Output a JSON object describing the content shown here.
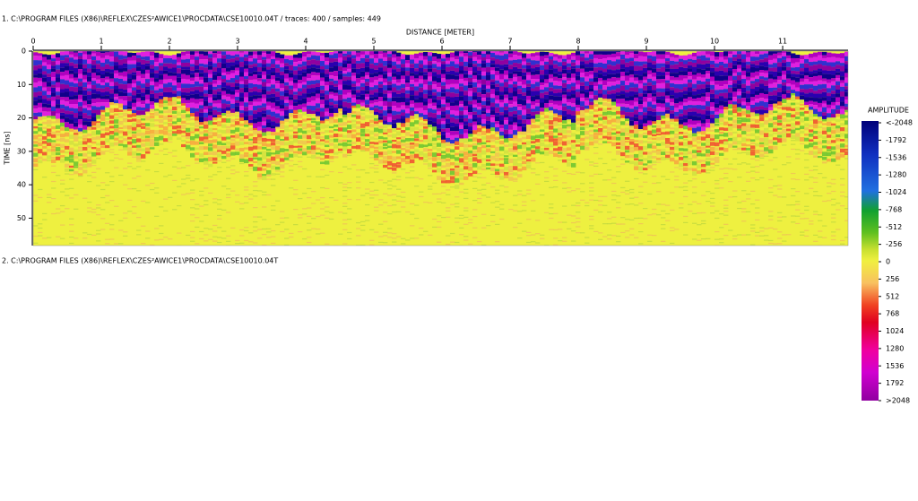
{
  "header": {
    "line1": "1. C:\\PROGRAM FILES (X86)\\REFLEX\\CZES²AWICE1\\PROCDATA\\CSE10010.04T  / traces: 400 / samples: 449",
    "line2": "2. C:\\PROGRAM FILES (X86)\\REFLEX\\CZES²AWICE1\\PROCDATA\\CSE10010.04T"
  },
  "chart_data": {
    "type": "radargram",
    "xlabel": "DISTANCE [METER]",
    "ylabel": "TIME [ns]",
    "xlim": [
      0,
      11.96
    ],
    "xticks": [
      0,
      1,
      2,
      3,
      4,
      5,
      6,
      7,
      8,
      9,
      10,
      11
    ],
    "ylim": [
      0,
      58.2
    ],
    "yticks": [
      0,
      10,
      20,
      30,
      40,
      50
    ],
    "colorbar": {
      "title": "AMPLITUDE",
      "ticks": [
        {
          "value": -2048,
          "label": "<-2048"
        },
        -1792,
        -1536,
        -1280,
        -1024,
        -768,
        -512,
        -256,
        0,
        256,
        512,
        768,
        1024,
        1280,
        1536,
        1792,
        {
          "value": 2048,
          "label": ">2048"
        }
      ]
    }
  }
}
